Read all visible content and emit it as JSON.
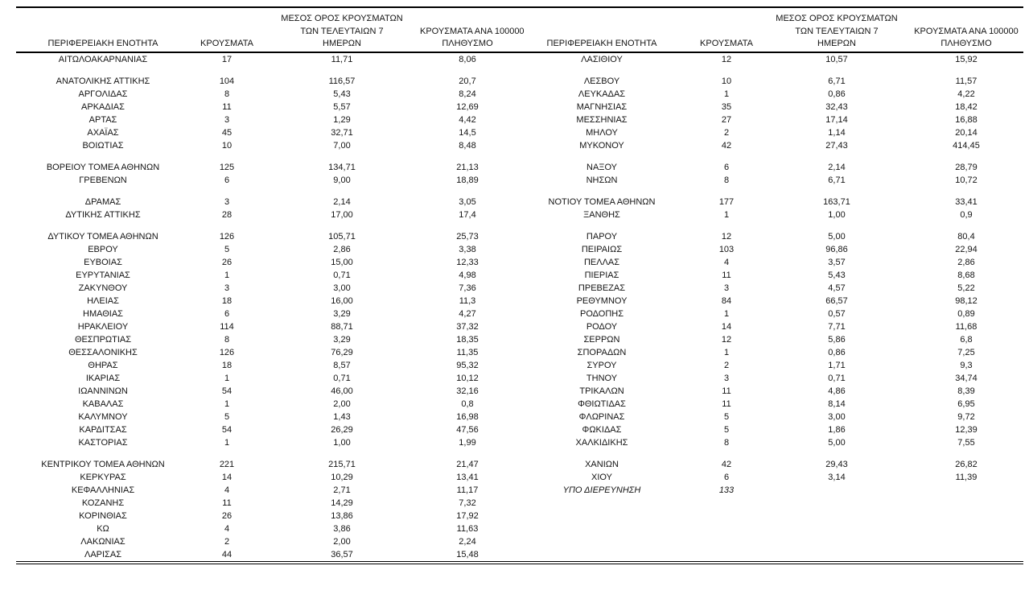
{
  "page": {
    "background": "#ffffff",
    "text_color": "#141414"
  },
  "table": {
    "column_headers": {
      "region": "ΠΕΡΙΦΕΡΕΙΑΚΗ ΕΝΟΤΗΤΑ",
      "cases": "ΚΡΟΥΣΜΑΤΑ",
      "avg7_lines": [
        "ΜΕΣΟΣ ΟΡΟΣ ΚΡΟΥΣΜΑΤΩΝ",
        "ΤΩΝ ΤΕΛΕΥΤΑΙΩΝ 7",
        "ΗΜΕΡΩΝ"
      ],
      "per100k_lines": [
        "ΚΡΟΥΣΜΑΤΑ ΑΝΑ 100000",
        "ΠΛΗΘΥΣΜΟ"
      ]
    },
    "grid_rows": [
      {
        "type": "data",
        "left": {
          "region": "ΑΙΤΩΛΟΑΚΑΡΝΑΝΙΑΣ",
          "cases": "17",
          "avg7": "11,71",
          "per100k": "8,06"
        },
        "right": {
          "region": "ΛΑΣΙΘΙΟΥ",
          "cases": "12",
          "avg7": "10,57",
          "per100k": "15,92"
        }
      },
      {
        "type": "spacer"
      },
      {
        "type": "data",
        "left": {
          "region": "ΑΝΑΤΟΛΙΚΗΣ ΑΤΤΙΚΗΣ",
          "cases": "104",
          "avg7": "116,57",
          "per100k": "20,7"
        },
        "right": {
          "region": "ΛΕΣΒΟΥ",
          "cases": "10",
          "avg7": "6,71",
          "per100k": "11,57"
        }
      },
      {
        "type": "data",
        "left": {
          "region": "ΑΡΓΟΛΙΔΑΣ",
          "cases": "8",
          "avg7": "5,43",
          "per100k": "8,24"
        },
        "right": {
          "region": "ΛΕΥΚΑΔΑΣ",
          "cases": "1",
          "avg7": "0,86",
          "per100k": "4,22"
        }
      },
      {
        "type": "data",
        "left": {
          "region": "ΑΡΚΑΔΙΑΣ",
          "cases": "11",
          "avg7": "5,57",
          "per100k": "12,69"
        },
        "right": {
          "region": "ΜΑΓΝΗΣΙΑΣ",
          "cases": "35",
          "avg7": "32,43",
          "per100k": "18,42"
        }
      },
      {
        "type": "data",
        "left": {
          "region": "ΑΡΤΑΣ",
          "cases": "3",
          "avg7": "1,29",
          "per100k": "4,42"
        },
        "right": {
          "region": "ΜΕΣΣΗΝΙΑΣ",
          "cases": "27",
          "avg7": "17,14",
          "per100k": "16,88"
        }
      },
      {
        "type": "data",
        "left": {
          "region": "ΑΧΑΪΑΣ",
          "cases": "45",
          "avg7": "32,71",
          "per100k": "14,5"
        },
        "right": {
          "region": "ΜΗΛΟΥ",
          "cases": "2",
          "avg7": "1,14",
          "per100k": "20,14"
        }
      },
      {
        "type": "data",
        "left": {
          "region": "ΒΟΙΩΤΙΑΣ",
          "cases": "10",
          "avg7": "7,00",
          "per100k": "8,48"
        },
        "right": {
          "region": "ΜΥΚΟΝΟΥ",
          "cases": "42",
          "avg7": "27,43",
          "per100k": "414,45"
        }
      },
      {
        "type": "spacer"
      },
      {
        "type": "data",
        "left": {
          "region": "ΒΟΡΕΙΟΥ ΤΟΜΕΑ ΑΘΗΝΩΝ",
          "cases": "125",
          "avg7": "134,71",
          "per100k": "21,13"
        },
        "right": {
          "region": "ΝΑΞΟΥ",
          "cases": "6",
          "avg7": "2,14",
          "per100k": "28,79"
        }
      },
      {
        "type": "data",
        "left": {
          "region": "ΓΡΕΒΕΝΩΝ",
          "cases": "6",
          "avg7": "9,00",
          "per100k": "18,89"
        },
        "right": {
          "region": "ΝΗΣΩΝ",
          "cases": "8",
          "avg7": "6,71",
          "per100k": "10,72"
        }
      },
      {
        "type": "spacer"
      },
      {
        "type": "data",
        "left": {
          "region": "ΔΡΑΜΑΣ",
          "cases": "3",
          "avg7": "2,14",
          "per100k": "3,05"
        },
        "right": {
          "region": "ΝΟΤΙΟΥ ΤΟΜΕΑ ΑΘΗΝΩΝ",
          "cases": "177",
          "avg7": "163,71",
          "per100k": "33,41"
        }
      },
      {
        "type": "data",
        "left": {
          "region": "ΔΥΤΙΚΗΣ ΑΤΤΙΚΗΣ",
          "cases": "28",
          "avg7": "17,00",
          "per100k": "17,4"
        },
        "right": {
          "region": "ΞΑΝΘΗΣ",
          "cases": "1",
          "avg7": "1,00",
          "per100k": "0,9"
        }
      },
      {
        "type": "spacer"
      },
      {
        "type": "data",
        "left": {
          "region": "ΔΥΤΙΚΟΥ ΤΟΜΕΑ ΑΘΗΝΩΝ",
          "cases": "126",
          "avg7": "105,71",
          "per100k": "25,73"
        },
        "right": {
          "region": "ΠΑΡΟΥ",
          "cases": "12",
          "avg7": "5,00",
          "per100k": "80,4"
        }
      },
      {
        "type": "data",
        "left": {
          "region": "ΕΒΡΟΥ",
          "cases": "5",
          "avg7": "2,86",
          "per100k": "3,38"
        },
        "right": {
          "region": "ΠΕΙΡΑΙΩΣ",
          "cases": "103",
          "avg7": "96,86",
          "per100k": "22,94"
        }
      },
      {
        "type": "data",
        "left": {
          "region": "ΕΥΒΟΙΑΣ",
          "cases": "26",
          "avg7": "15,00",
          "per100k": "12,33"
        },
        "right": {
          "region": "ΠΕΛΛΑΣ",
          "cases": "4",
          "avg7": "3,57",
          "per100k": "2,86"
        }
      },
      {
        "type": "data",
        "left": {
          "region": "ΕΥΡΥΤΑΝΙΑΣ",
          "cases": "1",
          "avg7": "0,71",
          "per100k": "4,98"
        },
        "right": {
          "region": "ΠΙΕΡΙΑΣ",
          "cases": "11",
          "avg7": "5,43",
          "per100k": "8,68"
        }
      },
      {
        "type": "data",
        "left": {
          "region": "ΖΑΚΥΝΘΟΥ",
          "cases": "3",
          "avg7": "3,00",
          "per100k": "7,36"
        },
        "right": {
          "region": "ΠΡΕΒΕΖΑΣ",
          "cases": "3",
          "avg7": "4,57",
          "per100k": "5,22"
        }
      },
      {
        "type": "data",
        "left": {
          "region": "ΗΛΕΙΑΣ",
          "cases": "18",
          "avg7": "16,00",
          "per100k": "11,3"
        },
        "right": {
          "region": "ΡΕΘΥΜΝΟΥ",
          "cases": "84",
          "avg7": "66,57",
          "per100k": "98,12"
        }
      },
      {
        "type": "data",
        "left": {
          "region": "ΗΜΑΘΙΑΣ",
          "cases": "6",
          "avg7": "3,29",
          "per100k": "4,27"
        },
        "right": {
          "region": "ΡΟΔΟΠΗΣ",
          "cases": "1",
          "avg7": "0,57",
          "per100k": "0,89"
        }
      },
      {
        "type": "data",
        "left": {
          "region": "ΗΡΑΚΛΕΙΟΥ",
          "cases": "114",
          "avg7": "88,71",
          "per100k": "37,32"
        },
        "right": {
          "region": "ΡΟΔΟΥ",
          "cases": "14",
          "avg7": "7,71",
          "per100k": "11,68"
        }
      },
      {
        "type": "data",
        "left": {
          "region": "ΘΕΣΠΡΩΤΙΑΣ",
          "cases": "8",
          "avg7": "3,29",
          "per100k": "18,35"
        },
        "right": {
          "region": "ΣΕΡΡΩΝ",
          "cases": "12",
          "avg7": "5,86",
          "per100k": "6,8"
        }
      },
      {
        "type": "data",
        "left": {
          "region": "ΘΕΣΣΑΛΟΝΙΚΗΣ",
          "cases": "126",
          "avg7": "76,29",
          "per100k": "11,35"
        },
        "right": {
          "region": "ΣΠΟΡΑΔΩΝ",
          "cases": "1",
          "avg7": "0,86",
          "per100k": "7,25"
        }
      },
      {
        "type": "data",
        "left": {
          "region": "ΘΗΡΑΣ",
          "cases": "18",
          "avg7": "8,57",
          "per100k": "95,32"
        },
        "right": {
          "region": "ΣΥΡΟΥ",
          "cases": "2",
          "avg7": "1,71",
          "per100k": "9,3"
        }
      },
      {
        "type": "data",
        "left": {
          "region": "ΙΚΑΡΙΑΣ",
          "cases": "1",
          "avg7": "0,71",
          "per100k": "10,12"
        },
        "right": {
          "region": "ΤΗΝΟΥ",
          "cases": "3",
          "avg7": "0,71",
          "per100k": "34,74"
        }
      },
      {
        "type": "data",
        "left": {
          "region": "ΙΩΑΝΝΙΝΩΝ",
          "cases": "54",
          "avg7": "46,00",
          "per100k": "32,16"
        },
        "right": {
          "region": "ΤΡΙΚΑΛΩΝ",
          "cases": "11",
          "avg7": "4,86",
          "per100k": "8,39"
        }
      },
      {
        "type": "data",
        "left": {
          "region": "ΚΑΒΑΛΑΣ",
          "cases": "1",
          "avg7": "2,00",
          "per100k": "0,8"
        },
        "right": {
          "region": "ΦΘΙΩΤΙΔΑΣ",
          "cases": "11",
          "avg7": "8,14",
          "per100k": "6,95"
        }
      },
      {
        "type": "data",
        "left": {
          "region": "ΚΑΛΥΜΝΟΥ",
          "cases": "5",
          "avg7": "1,43",
          "per100k": "16,98"
        },
        "right": {
          "region": "ΦΛΩΡΙΝΑΣ",
          "cases": "5",
          "avg7": "3,00",
          "per100k": "9,72"
        }
      },
      {
        "type": "data",
        "left": {
          "region": "ΚΑΡΔΙΤΣΑΣ",
          "cases": "54",
          "avg7": "26,29",
          "per100k": "47,56"
        },
        "right": {
          "region": "ΦΩΚΙΔΑΣ",
          "cases": "5",
          "avg7": "1,86",
          "per100k": "12,39"
        }
      },
      {
        "type": "data",
        "left": {
          "region": "ΚΑΣΤΟΡΙΑΣ",
          "cases": "1",
          "avg7": "1,00",
          "per100k": "1,99"
        },
        "right": {
          "region": "ΧΑΛΚΙΔΙΚΗΣ",
          "cases": "8",
          "avg7": "5,00",
          "per100k": "7,55"
        }
      },
      {
        "type": "spacer"
      },
      {
        "type": "data",
        "left": {
          "region": "ΚΕΝΤΡΙΚΟΥ ΤΟΜΕΑ ΑΘΗΝΩΝ",
          "cases": "221",
          "avg7": "215,71",
          "per100k": "21,47"
        },
        "right": {
          "region": "ΧΑΝΙΩΝ",
          "cases": "42",
          "avg7": "29,43",
          "per100k": "26,82"
        }
      },
      {
        "type": "data",
        "left": {
          "region": "ΚΕΡΚΥΡΑΣ",
          "cases": "14",
          "avg7": "10,29",
          "per100k": "13,41"
        },
        "right": {
          "region": "ΧΙΟΥ",
          "cases": "6",
          "avg7": "3,14",
          "per100k": "11,39"
        }
      },
      {
        "type": "data",
        "left": {
          "region": "ΚΕΦΑΛΛΗΝΙΑΣ",
          "cases": "4",
          "avg7": "2,71",
          "per100k": "11,17"
        },
        "right": {
          "region": "ΥΠΟ ΔΙΕΡΕΥΝΗΣΗ",
          "cases": "133",
          "avg7": "",
          "per100k": "",
          "italic": true
        }
      },
      {
        "type": "data",
        "left": {
          "region": "ΚΟΖΑΝΗΣ",
          "cases": "11",
          "avg7": "14,29",
          "per100k": "7,32"
        }
      },
      {
        "type": "data",
        "left": {
          "region": "ΚΟΡΙΝΘΙΑΣ",
          "cases": "26",
          "avg7": "13,86",
          "per100k": "17,92"
        }
      },
      {
        "type": "data",
        "left": {
          "region": "ΚΩ",
          "cases": "4",
          "avg7": "3,86",
          "per100k": "11,63"
        }
      },
      {
        "type": "data",
        "left": {
          "region": "ΛΑΚΩΝΙΑΣ",
          "cases": "2",
          "avg7": "2,00",
          "per100k": "2,24"
        }
      },
      {
        "type": "data",
        "left": {
          "region": "ΛΑΡΙΣΑΣ",
          "cases": "44",
          "avg7": "36,57",
          "per100k": "15,48"
        }
      }
    ]
  }
}
